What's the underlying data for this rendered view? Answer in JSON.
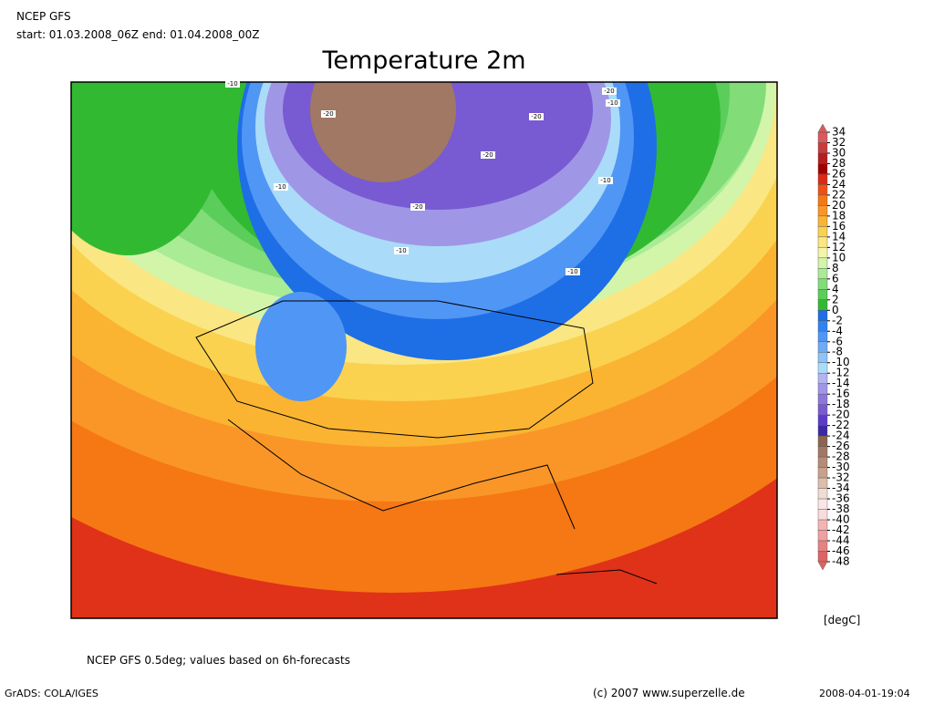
{
  "header": {
    "model": "NCEP GFS",
    "period": "start: 01.03.2008_06Z end: 01.04.2008_00Z"
  },
  "title": "Temperature 2m",
  "map": {
    "contour_labels": [
      "-20",
      "-10",
      "-20",
      "-20",
      "-20",
      "-20",
      "-10",
      "-10",
      "-10",
      "-10",
      "-10"
    ]
  },
  "colorbar": {
    "unit": "[degC]",
    "levels": [
      34,
      32,
      30,
      28,
      26,
      24,
      22,
      20,
      18,
      16,
      14,
      12,
      10,
      8,
      6,
      4,
      2,
      0,
      -2,
      -4,
      -6,
      -8,
      -10,
      -12,
      -14,
      -16,
      -18,
      -20,
      -22,
      -24,
      -26,
      -28,
      -30,
      -32,
      -34,
      -36,
      -38,
      -40,
      -42,
      -44,
      -46,
      -48
    ],
    "colors": [
      "#d95a5a",
      "#c83c3c",
      "#b41e1e",
      "#a00000",
      "#dc2814",
      "#f05014",
      "#f57814",
      "#fa9628",
      "#fab432",
      "#fad250",
      "#fae682",
      "#f5f5aa",
      "#d2f5aa",
      "#aaeb96",
      "#82dc78",
      "#5acd5a",
      "#32b932",
      "#1e6ee6",
      "#3282f0",
      "#5096f5",
      "#6eaaf5",
      "#8cc3fa",
      "#aadcfa",
      "#b4b4f0",
      "#a096e6",
      "#8c78dc",
      "#785ad2",
      "#5a3cc8",
      "#3c28a0",
      "#8c6450",
      "#a07864",
      "#b48c78",
      "#c8a08c",
      "#dcbeaa",
      "#f0dcd2",
      "#fae6e6",
      "#fadcdc",
      "#f5b4b4",
      "#f0a0a0",
      "#e68282",
      "#dc6464"
    ]
  },
  "footer": {
    "source": "NCEP GFS 0.5deg; values based on 6h-forecasts",
    "software": "GrADS: COLA/IGES",
    "copyright": "(c) 2007 www.superzelle.de",
    "timestamp": "2008-04-01-19:04"
  }
}
